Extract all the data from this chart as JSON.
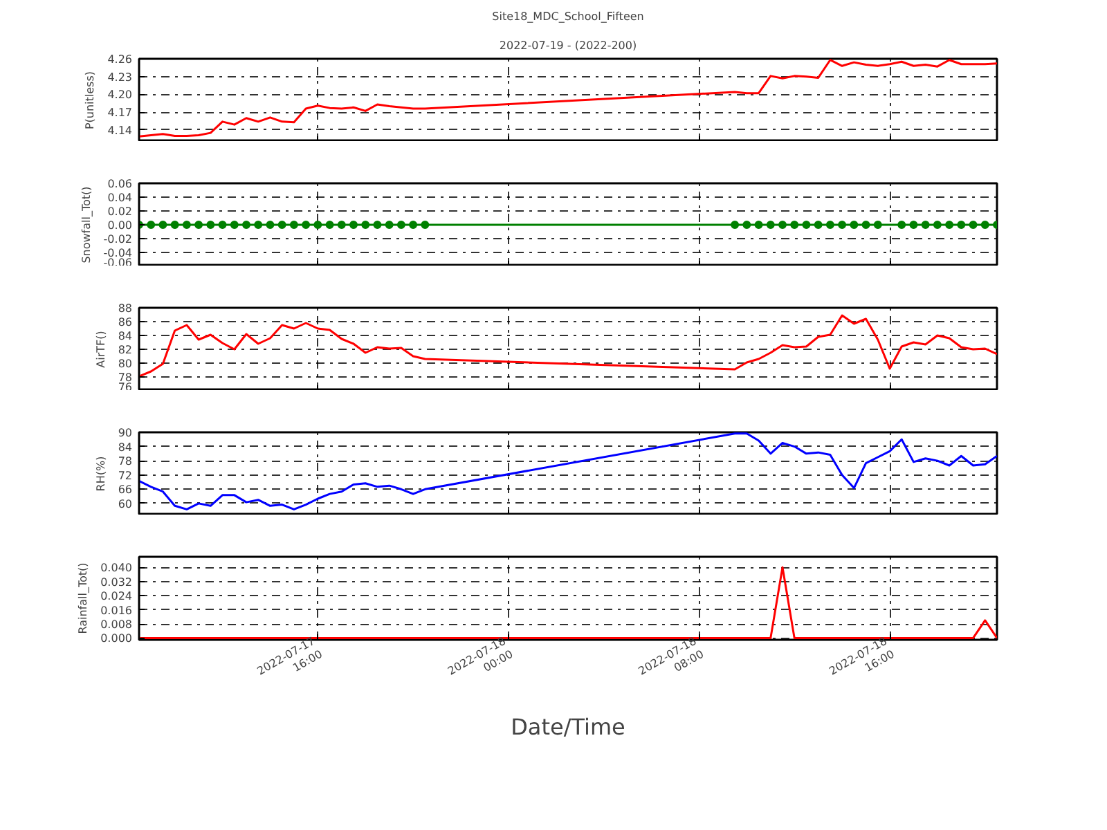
{
  "chart_data": [
    {
      "type": "line",
      "title": "Site18_MDC_School_Fifteen",
      "subtitle": "2022-07-19 - (2022-200)",
      "ylabel": "P(unitless)",
      "grid": true,
      "tick_labels": "y",
      "xlim": [
        "2022-07-17T08:30",
        "2022-07-18T20:30"
      ],
      "xticks": [
        {
          "value": "2022-07-17T16:00",
          "label": null
        },
        {
          "value": "2022-07-18T00:00",
          "label": null
        },
        {
          "value": "2022-07-18T08:00",
          "label": null
        },
        {
          "value": "2022-07-18T16:00",
          "label": null
        }
      ],
      "ylim": [
        4.12,
        4.26
      ],
      "yticks": [
        4.14,
        4.17,
        {
          "value": 4.2,
          "label": "4.20"
        },
        4.23,
        4.26
      ],
      "x": [
        "2022-07-17T08:30",
        "2022-07-17T09:00",
        "2022-07-17T09:30",
        "2022-07-17T10:00",
        "2022-07-17T10:30",
        "2022-07-17T11:00",
        "2022-07-17T11:30",
        "2022-07-17T12:00",
        "2022-07-17T12:30",
        "2022-07-17T13:00",
        "2022-07-17T13:30",
        "2022-07-17T14:00",
        "2022-07-17T14:30",
        "2022-07-17T15:00",
        "2022-07-17T15:30",
        "2022-07-17T16:00",
        "2022-07-17T16:30",
        "2022-07-17T17:00",
        "2022-07-17T17:30",
        "2022-07-17T18:00",
        "2022-07-17T18:30",
        "2022-07-17T19:00",
        "2022-07-17T19:30",
        "2022-07-17T20:00",
        "2022-07-17T20:30",
        "2022-07-18T09:30",
        "2022-07-18T10:00",
        "2022-07-18T10:30",
        "2022-07-18T11:00",
        "2022-07-18T11:30",
        "2022-07-18T12:00",
        "2022-07-18T12:30",
        "2022-07-18T13:00",
        "2022-07-18T13:30",
        "2022-07-18T14:00",
        "2022-07-18T14:30",
        "2022-07-18T15:00",
        "2022-07-18T15:30",
        "2022-07-18T16:00",
        "2022-07-18T16:30",
        "2022-07-18T17:00",
        "2022-07-18T17:30",
        "2022-07-18T18:00",
        "2022-07-18T18:30",
        "2022-07-18T19:00",
        "2022-07-18T19:30",
        "2022-07-18T20:00",
        "2022-07-18T20:30"
      ],
      "series": [
        {
          "color": "#ff0000",
          "values": [
            4.129,
            4.131,
            4.133,
            4.13,
            4.13,
            4.131,
            4.135,
            4.154,
            4.149,
            4.16,
            4.154,
            4.161,
            4.154,
            4.153,
            4.176,
            4.181,
            4.177,
            4.176,
            4.178,
            4.172,
            4.183,
            4.18,
            4.178,
            4.176,
            4.176,
            4.204,
            4.202,
            4.202,
            4.231,
            4.227,
            4.231,
            4.23,
            4.228,
            4.258,
            4.248,
            4.254,
            4.25,
            4.248,
            4.251,
            4.255,
            4.248,
            4.25,
            4.247,
            4.258,
            4.251,
            4.251,
            4.251,
            4.252
          ]
        }
      ]
    },
    {
      "type": "line",
      "ylabel": "Snowfall_Tot()",
      "grid": true,
      "tick_labels": "y",
      "marker": "circle",
      "xlim": [
        "2022-07-17T08:30",
        "2022-07-18T20:30"
      ],
      "xticks": [
        {
          "value": "2022-07-17T16:00",
          "label": null
        },
        {
          "value": "2022-07-18T00:00",
          "label": null
        },
        {
          "value": "2022-07-18T08:00",
          "label": null
        },
        {
          "value": "2022-07-18T16:00",
          "label": null
        }
      ],
      "ylim": [
        -0.06,
        0.06
      ],
      "yticks": [
        {
          "value": -0.06,
          "label": "-0.06"
        },
        {
          "value": -0.04,
          "label": "-0.04"
        },
        {
          "value": -0.02,
          "label": "-0.02"
        },
        {
          "value": 0,
          "label": "0.00"
        },
        {
          "value": 0.02,
          "label": "0.02"
        },
        {
          "value": 0.04,
          "label": "0.04"
        },
        {
          "value": 0.06,
          "label": "0.06"
        }
      ],
      "x": [
        "2022-07-17T08:30",
        "2022-07-17T09:00",
        "2022-07-17T09:30",
        "2022-07-17T10:00",
        "2022-07-17T10:30",
        "2022-07-17T11:00",
        "2022-07-17T11:30",
        "2022-07-17T12:00",
        "2022-07-17T12:30",
        "2022-07-17T13:00",
        "2022-07-17T13:30",
        "2022-07-17T14:00",
        "2022-07-17T14:30",
        "2022-07-17T15:00",
        "2022-07-17T15:30",
        "2022-07-17T16:00",
        "2022-07-17T16:30",
        "2022-07-17T17:00",
        "2022-07-17T17:30",
        "2022-07-17T18:00",
        "2022-07-17T18:30",
        "2022-07-17T19:00",
        "2022-07-17T19:30",
        "2022-07-17T20:00",
        "2022-07-17T20:30",
        "2022-07-18T09:30",
        "2022-07-18T10:00",
        "2022-07-18T10:30",
        "2022-07-18T11:00",
        "2022-07-18T11:30",
        "2022-07-18T12:00",
        "2022-07-18T12:30",
        "2022-07-18T13:00",
        "2022-07-18T13:30",
        "2022-07-18T14:00",
        "2022-07-18T14:30",
        "2022-07-18T15:00",
        "2022-07-18T15:30",
        "2022-07-18T16:30",
        "2022-07-18T17:00",
        "2022-07-18T17:30",
        "2022-07-18T18:00",
        "2022-07-18T18:30",
        "2022-07-18T19:00",
        "2022-07-18T19:30",
        "2022-07-18T20:00",
        "2022-07-18T20:30"
      ],
      "series": [
        {
          "color": "#008000",
          "values": [
            0,
            0,
            0,
            0,
            0,
            0,
            0,
            0,
            0,
            0,
            0,
            0,
            0,
            0,
            0,
            0,
            0,
            0,
            0,
            0,
            0,
            0,
            0,
            0,
            0,
            0,
            0,
            0,
            0,
            0,
            0,
            0,
            0,
            0,
            0,
            0,
            0,
            0,
            0,
            0,
            0,
            0,
            0,
            0,
            0,
            0,
            0
          ]
        }
      ]
    },
    {
      "type": "line",
      "ylabel": "AirTF()",
      "grid": true,
      "tick_labels": "y",
      "xlim": [
        "2022-07-17T08:30",
        "2022-07-18T20:30"
      ],
      "xticks": [
        {
          "value": "2022-07-17T16:00",
          "label": null
        },
        {
          "value": "2022-07-18T00:00",
          "label": null
        },
        {
          "value": "2022-07-18T08:00",
          "label": null
        },
        {
          "value": "2022-07-18T16:00",
          "label": null
        }
      ],
      "ylim": [
        76,
        88
      ],
      "yticks": [
        76,
        78,
        80,
        82,
        84,
        86,
        88
      ],
      "x": [
        "2022-07-17T08:30",
        "2022-07-17T09:00",
        "2022-07-17T09:30",
        "2022-07-17T10:00",
        "2022-07-17T10:30",
        "2022-07-17T11:00",
        "2022-07-17T11:30",
        "2022-07-17T12:00",
        "2022-07-17T12:30",
        "2022-07-17T13:00",
        "2022-07-17T13:30",
        "2022-07-17T14:00",
        "2022-07-17T14:30",
        "2022-07-17T15:00",
        "2022-07-17T15:30",
        "2022-07-17T16:00",
        "2022-07-17T16:30",
        "2022-07-17T17:00",
        "2022-07-17T17:30",
        "2022-07-17T18:00",
        "2022-07-17T18:30",
        "2022-07-17T19:00",
        "2022-07-17T19:30",
        "2022-07-17T20:00",
        "2022-07-17T20:30",
        "2022-07-18T09:30",
        "2022-07-18T10:00",
        "2022-07-18T10:30",
        "2022-07-18T11:00",
        "2022-07-18T11:30",
        "2022-07-18T12:00",
        "2022-07-18T12:30",
        "2022-07-18T13:00",
        "2022-07-18T13:30",
        "2022-07-18T14:00",
        "2022-07-18T14:30",
        "2022-07-18T15:00",
        "2022-07-18T15:30",
        "2022-07-18T16:00",
        "2022-07-18T16:30",
        "2022-07-18T17:00",
        "2022-07-18T17:30",
        "2022-07-18T18:00",
        "2022-07-18T18:30",
        "2022-07-18T19:00",
        "2022-07-18T19:30",
        "2022-07-18T20:00",
        "2022-07-18T20:30"
      ],
      "series": [
        {
          "color": "#ff0000",
          "values": [
            78.1,
            78.8,
            79.9,
            84.7,
            85.5,
            83.4,
            84.1,
            82.9,
            82.0,
            84.2,
            82.8,
            83.6,
            85.5,
            85.0,
            85.8,
            85.0,
            84.8,
            83.5,
            82.8,
            81.5,
            82.3,
            82.1,
            82.2,
            81.0,
            80.6,
            79.1,
            80.1,
            80.6,
            81.5,
            82.6,
            82.3,
            82.4,
            83.8,
            84.1,
            86.9,
            85.7,
            86.4,
            83.4,
            79.2,
            82.4,
            83.0,
            82.7,
            84.0,
            83.6,
            82.3,
            82.0,
            82.1,
            81.3
          ]
        }
      ]
    },
    {
      "type": "line",
      "ylabel": "RH(%)",
      "grid": true,
      "tick_labels": "y",
      "xlim": [
        "2022-07-17T08:30",
        "2022-07-18T20:30"
      ],
      "xticks": [
        {
          "value": "2022-07-17T16:00",
          "label": null
        },
        {
          "value": "2022-07-18T00:00",
          "label": null
        },
        {
          "value": "2022-07-18T08:00",
          "label": null
        },
        {
          "value": "2022-07-18T16:00",
          "label": null
        }
      ],
      "ylim": [
        55,
        90
      ],
      "yticks": [
        60,
        66,
        72,
        78,
        84,
        90
      ],
      "x": [
        "2022-07-17T08:30",
        "2022-07-17T09:00",
        "2022-07-17T09:30",
        "2022-07-17T10:00",
        "2022-07-17T10:30",
        "2022-07-17T11:00",
        "2022-07-17T11:30",
        "2022-07-17T12:00",
        "2022-07-17T12:30",
        "2022-07-17T13:00",
        "2022-07-17T13:30",
        "2022-07-17T14:00",
        "2022-07-17T14:30",
        "2022-07-17T15:00",
        "2022-07-17T15:30",
        "2022-07-17T16:00",
        "2022-07-17T16:30",
        "2022-07-17T17:00",
        "2022-07-17T17:30",
        "2022-07-17T18:00",
        "2022-07-17T18:30",
        "2022-07-17T19:00",
        "2022-07-17T19:30",
        "2022-07-17T20:00",
        "2022-07-17T20:30",
        "2022-07-18T09:30",
        "2022-07-18T10:00",
        "2022-07-18T10:30",
        "2022-07-18T11:00",
        "2022-07-18T11:30",
        "2022-07-18T12:00",
        "2022-07-18T12:30",
        "2022-07-18T13:00",
        "2022-07-18T13:30",
        "2022-07-18T14:00",
        "2022-07-18T14:30",
        "2022-07-18T15:00",
        "2022-07-18T15:30",
        "2022-07-18T16:00",
        "2022-07-18T16:30",
        "2022-07-18T17:00",
        "2022-07-18T17:30",
        "2022-07-18T18:00",
        "2022-07-18T18:30",
        "2022-07-18T19:00",
        "2022-07-18T19:30",
        "2022-07-18T20:00",
        "2022-07-18T20:30"
      ],
      "series": [
        {
          "color": "#0000ff",
          "values": [
            69.5,
            67,
            65,
            59,
            57.5,
            60,
            59,
            63.5,
            63.5,
            60.5,
            61.5,
            59,
            59.5,
            57.5,
            59.5,
            62,
            64,
            65,
            68,
            68.5,
            67,
            67.5,
            66,
            64,
            66,
            89.5,
            89.5,
            86.5,
            81,
            85.5,
            84,
            81,
            81.5,
            80.5,
            72,
            66.5,
            77,
            79.5,
            82,
            87,
            77.5,
            79,
            78,
            76,
            80,
            76,
            76.5,
            80
          ]
        }
      ]
    },
    {
      "type": "line",
      "ylabel": "Rainfall_Tot()",
      "xlabel": "Date/Time",
      "grid": true,
      "xlim": [
        "2022-07-17T08:30",
        "2022-07-18T20:30"
      ],
      "xticks": [
        {
          "value": "2022-07-17T16:00",
          "label": "2022-07-17\n16:00"
        },
        {
          "value": "2022-07-18T00:00",
          "label": "2022-07-18\n00:00"
        },
        {
          "value": "2022-07-18T08:00",
          "label": "2022-07-18\n08:00"
        },
        {
          "value": "2022-07-18T16:00",
          "label": "2022-07-18\n16:00"
        }
      ],
      "ylim": [
        -0.001,
        0.046
      ],
      "yticks": [
        {
          "value": 0,
          "label": "0.000"
        },
        {
          "value": 0.008,
          "label": "0.008"
        },
        {
          "value": 0.016,
          "label": "0.016"
        },
        {
          "value": 0.024,
          "label": "0.024"
        },
        {
          "value": 0.032,
          "label": "0.032"
        },
        {
          "value": 0.04,
          "label": "0.040"
        }
      ],
      "x": [
        "2022-07-17T08:30",
        "2022-07-17T09:00",
        "2022-07-17T09:30",
        "2022-07-17T10:00",
        "2022-07-17T10:30",
        "2022-07-17T11:00",
        "2022-07-17T11:30",
        "2022-07-17T12:00",
        "2022-07-17T12:30",
        "2022-07-17T13:00",
        "2022-07-17T13:30",
        "2022-07-17T14:00",
        "2022-07-17T14:30",
        "2022-07-17T15:00",
        "2022-07-17T15:30",
        "2022-07-17T16:00",
        "2022-07-17T16:30",
        "2022-07-17T17:00",
        "2022-07-17T17:30",
        "2022-07-17T18:00",
        "2022-07-17T18:30",
        "2022-07-17T19:00",
        "2022-07-17T19:30",
        "2022-07-17T20:00",
        "2022-07-17T20:30",
        "2022-07-18T09:30",
        "2022-07-18T10:00",
        "2022-07-18T10:30",
        "2022-07-18T11:00",
        "2022-07-18T11:30",
        "2022-07-18T12:00",
        "2022-07-18T12:30",
        "2022-07-18T13:00",
        "2022-07-18T13:30",
        "2022-07-18T14:00",
        "2022-07-18T14:30",
        "2022-07-18T15:00",
        "2022-07-18T15:30",
        "2022-07-18T16:00",
        "2022-07-18T16:30",
        "2022-07-18T17:00",
        "2022-07-18T17:30",
        "2022-07-18T18:00",
        "2022-07-18T18:30",
        "2022-07-18T19:00",
        "2022-07-18T19:30",
        "2022-07-18T20:00",
        "2022-07-18T20:30"
      ],
      "series": [
        {
          "color": "#ff0000",
          "values": [
            0,
            0,
            0,
            0,
            0,
            0,
            0,
            0,
            0,
            0,
            0,
            0,
            0,
            0,
            0,
            0,
            0,
            0,
            0,
            0,
            0,
            0,
            0,
            0,
            0,
            0,
            0,
            0,
            0,
            0.04,
            0,
            0,
            0,
            0,
            0,
            0,
            0,
            0,
            0,
            0,
            0,
            0,
            0,
            0,
            0,
            0,
            0.01,
            0
          ]
        }
      ]
    }
  ]
}
